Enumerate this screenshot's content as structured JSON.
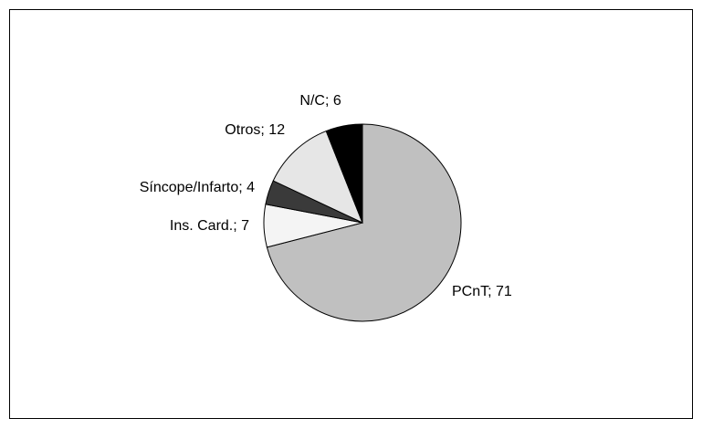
{
  "chart_data": {
    "type": "pie",
    "values": [
      71,
      7,
      4,
      12,
      6
    ],
    "value_labels": [
      "PCnT; 71",
      "Ins. Card.; 7",
      "Síncope/Infarto; 4",
      "Otros; 12",
      "N/C; 6"
    ],
    "colors": [
      "#c0c0c0",
      "#f4f4f4",
      "#3a3a3a",
      "#e6e6e6",
      "#000000"
    ]
  }
}
